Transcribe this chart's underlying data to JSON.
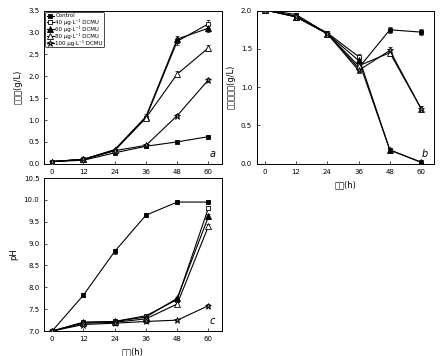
{
  "time": [
    0,
    12,
    24,
    36,
    48,
    60
  ],
  "panel_a": {
    "title": "a",
    "ylabel": "生物量(g/L)",
    "xlabel": "时间(h)",
    "ylim": [
      0,
      3.5
    ],
    "yticks": [
      0.0,
      0.5,
      1.0,
      1.5,
      2.0,
      2.5,
      3.0,
      3.5
    ],
    "series": [
      [
        0.05,
        0.08,
        0.25,
        0.4,
        0.5,
        0.62
      ],
      [
        0.05,
        0.1,
        0.3,
        1.05,
        2.8,
        3.2
      ],
      [
        0.05,
        0.1,
        0.32,
        1.08,
        2.85,
        3.1
      ],
      [
        0.05,
        0.1,
        0.32,
        1.05,
        2.05,
        2.65
      ],
      [
        0.05,
        0.1,
        0.3,
        0.42,
        1.1,
        1.92
      ]
    ],
    "yerr": [
      [
        0.01,
        0.01,
        0.02,
        0.03,
        0.03,
        0.03
      ],
      [
        0.01,
        0.01,
        0.02,
        0.05,
        0.08,
        0.09
      ],
      [
        0.01,
        0.01,
        0.02,
        0.05,
        0.08,
        0.08
      ],
      [
        0.01,
        0.01,
        0.02,
        0.05,
        0.06,
        0.07
      ],
      [
        0.01,
        0.01,
        0.02,
        0.02,
        0.04,
        0.05
      ]
    ]
  },
  "panel_b": {
    "title": "b",
    "ylabel": "葡萄糖含量(g/L)",
    "xlabel": "时间(h)",
    "ylim": [
      0.0,
      2.0
    ],
    "yticks": [
      0.0,
      0.5,
      1.0,
      1.5,
      2.0
    ],
    "series": [
      [
        2.01,
        1.95,
        1.7,
        1.25,
        1.75,
        1.72
      ],
      [
        2.01,
        1.93,
        1.71,
        1.4,
        0.18,
        0.02
      ],
      [
        2.01,
        1.92,
        1.7,
        1.35,
        0.18,
        0.02
      ],
      [
        2.01,
        1.92,
        1.7,
        1.28,
        1.45,
        0.72
      ],
      [
        2.01,
        1.92,
        1.7,
        1.22,
        1.48,
        0.72
      ]
    ],
    "yerr": [
      [
        0.02,
        0.02,
        0.03,
        0.04,
        0.04,
        0.04
      ],
      [
        0.02,
        0.02,
        0.03,
        0.04,
        0.02,
        0.01
      ],
      [
        0.02,
        0.02,
        0.03,
        0.04,
        0.02,
        0.01
      ],
      [
        0.02,
        0.02,
        0.03,
        0.04,
        0.04,
        0.03
      ],
      [
        0.02,
        0.02,
        0.03,
        0.04,
        0.04,
        0.03
      ]
    ]
  },
  "panel_c": {
    "title": "c",
    "ylabel": "pH",
    "xlabel": "时间(h)",
    "ylim": [
      7.0,
      10.5
    ],
    "yticks": [
      7.0,
      7.5,
      8.0,
      8.5,
      9.0,
      9.5,
      10.0,
      10.5
    ],
    "series": [
      [
        7.0,
        7.82,
        8.82,
        9.65,
        9.95,
        9.95
      ],
      [
        7.0,
        7.2,
        7.22,
        7.35,
        7.72,
        9.82
      ],
      [
        7.0,
        7.2,
        7.22,
        7.32,
        7.75,
        9.62
      ],
      [
        7.0,
        7.18,
        7.2,
        7.28,
        7.62,
        9.4
      ],
      [
        7.0,
        7.15,
        7.18,
        7.22,
        7.25,
        7.58
      ]
    ],
    "yerr": [
      [
        0.01,
        0.05,
        0.06,
        0.05,
        0.04,
        0.04
      ],
      [
        0.01,
        0.03,
        0.03,
        0.03,
        0.04,
        0.05
      ],
      [
        0.01,
        0.03,
        0.03,
        0.03,
        0.04,
        0.05
      ],
      [
        0.01,
        0.03,
        0.03,
        0.03,
        0.04,
        0.05
      ],
      [
        0.01,
        0.03,
        0.03,
        0.03,
        0.03,
        0.04
      ]
    ]
  },
  "legend_labels": [
    "Control",
    "40 µg·L⁻¹ DCMU",
    "60 µg·L⁻¹ DCMU",
    "80 µg·L⁻¹ DCMU",
    "100 µg·L⁻¹ DCMU"
  ],
  "markers": [
    "s",
    "s",
    "^",
    "^",
    "*"
  ],
  "markerfacecolors": [
    "black",
    "white",
    "black",
    "white",
    "gray"
  ],
  "markeredgecolors": [
    "black",
    "black",
    "black",
    "black",
    "black"
  ],
  "markersizes": [
    3.5,
    3.5,
    4,
    4,
    5
  ],
  "linewidth": 0.8,
  "elinewidth": 0.5,
  "capsize": 1.5,
  "capthick": 0.5
}
